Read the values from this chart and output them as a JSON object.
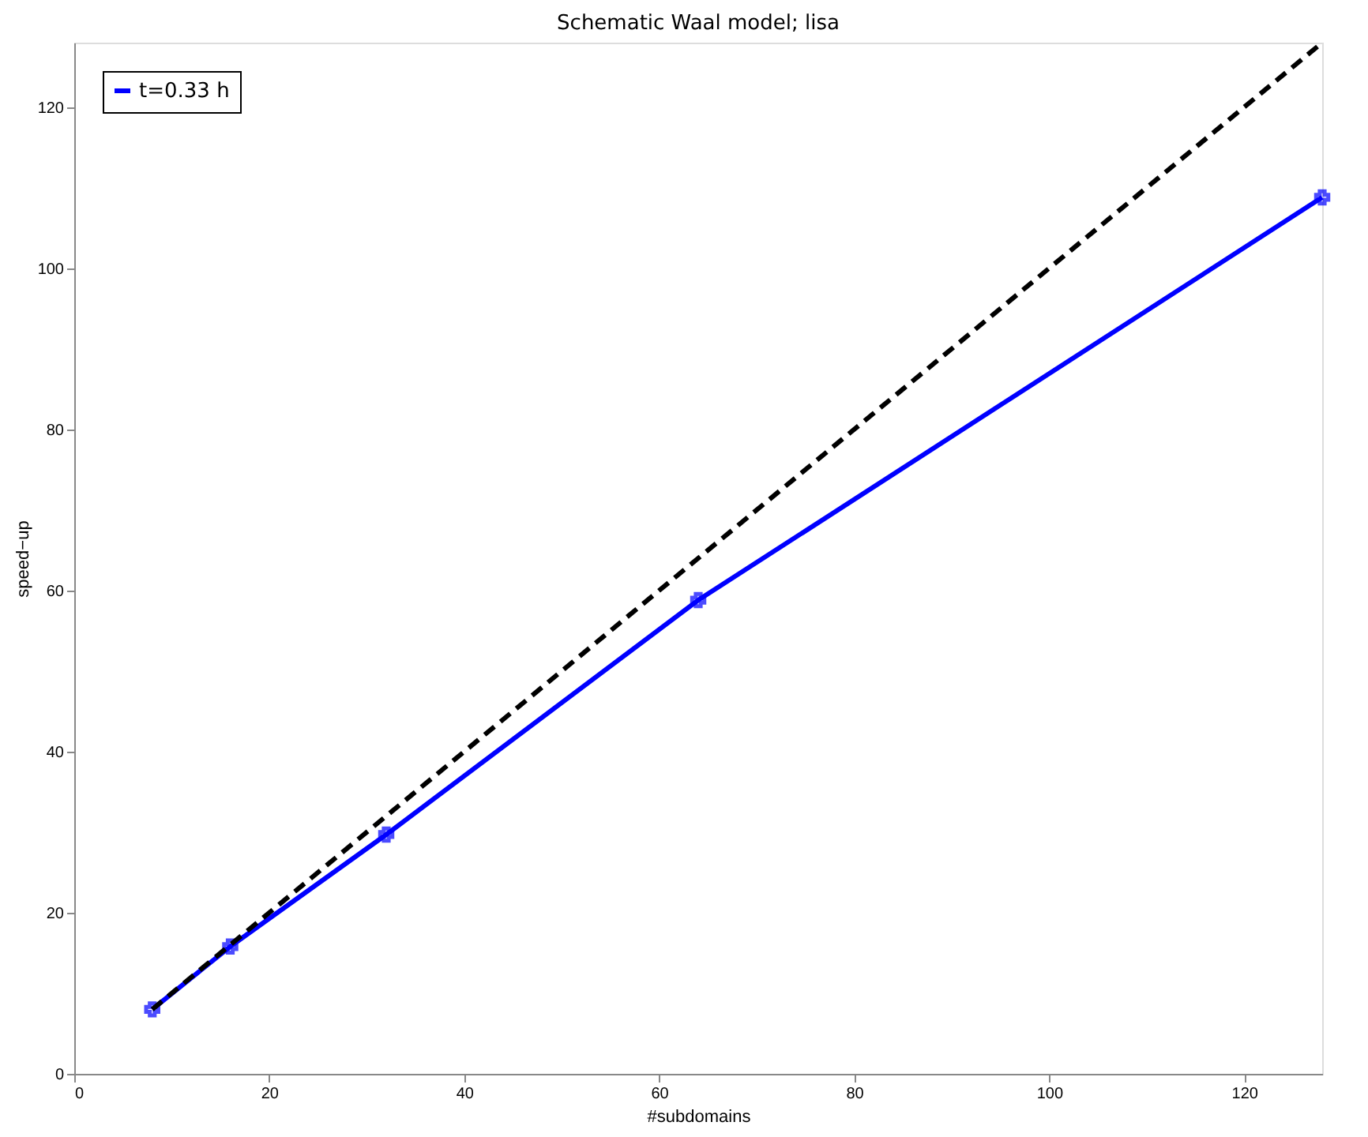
{
  "chart_data": {
    "type": "line",
    "title": "Schematic Waal model; lisa",
    "xlabel": "#subdomains",
    "ylabel": "speed−up",
    "xlim": [
      0,
      128
    ],
    "ylim": [
      0,
      128
    ],
    "xticks": [
      0,
      20,
      40,
      60,
      80,
      100,
      120
    ],
    "yticks": [
      0,
      20,
      40,
      60,
      80,
      100,
      120
    ],
    "grid": false,
    "legend": "top left",
    "series": [
      {
        "name": "t=0.33 h",
        "color": "#0000ff",
        "x": [
          8,
          16,
          32,
          64,
          128
        ],
        "values": [
          8,
          15.8,
          29.7,
          58.8,
          108.8
        ],
        "marker": "cross",
        "line_style": "solid"
      },
      {
        "color": "#000000",
        "x": [
          8,
          128
        ],
        "values": [
          8,
          128
        ],
        "marker": "none",
        "line_style": "dashed"
      }
    ]
  }
}
